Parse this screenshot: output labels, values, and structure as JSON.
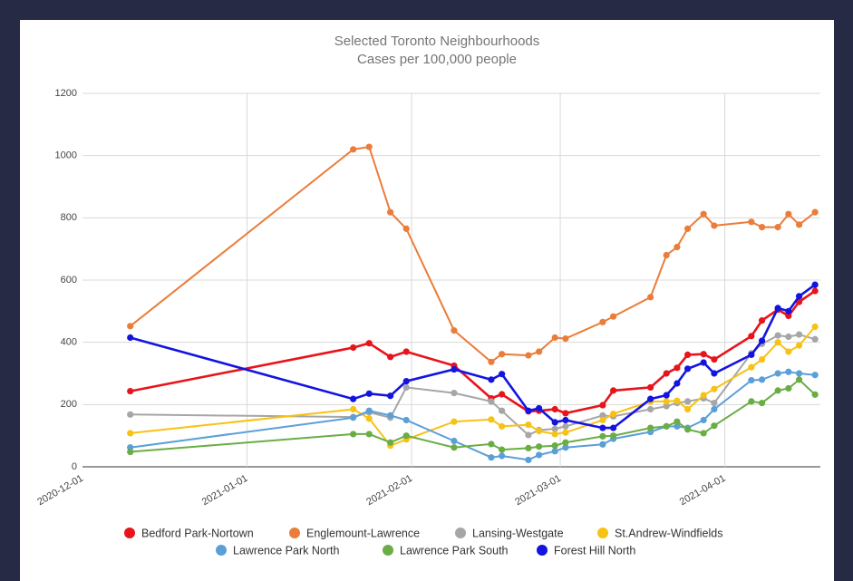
{
  "chart_data": {
    "type": "line",
    "title": "Selected Toronto Neighbourhoods",
    "subtitle": "Cases per 100,000 people",
    "x": [
      "2020-12-10",
      "2021-01-21",
      "2021-01-24",
      "2021-01-28",
      "2021-01-31",
      "2021-02-09",
      "2021-02-16",
      "2021-02-18",
      "2021-02-23",
      "2021-02-25",
      "2021-02-28",
      "2021-03-02",
      "2021-03-09",
      "2021-03-11",
      "2021-03-18",
      "2021-03-21",
      "2021-03-23",
      "2021-03-25",
      "2021-03-28",
      "2021-03-30",
      "2021-04-06",
      "2021-04-08",
      "2021-04-11",
      "2021-04-13",
      "2021-04-15",
      "2021-04-18"
    ],
    "xlim": [
      "2020-12-01",
      "2021-04-19"
    ],
    "xticks": [
      "2020-12-01",
      "2021-01-01",
      "2021-02-01",
      "2021-03-01",
      "2021-04-01"
    ],
    "ylim": [
      0,
      1200
    ],
    "yticks": [
      0,
      200,
      400,
      600,
      800,
      1000,
      1200
    ],
    "grid": true,
    "legend": "bottom",
    "series": [
      {
        "name": "Bedford Park-Nortown",
        "color": "#e8141b",
        "values": [
          243,
          383,
          397,
          353,
          370,
          325,
          220,
          233,
          178,
          180,
          185,
          172,
          198,
          245,
          255,
          300,
          318,
          360,
          362,
          345,
          420,
          470,
          505,
          485,
          530,
          565
        ]
      },
      {
        "name": "Englemount-Lawrence",
        "color": "#ea7d3a",
        "values": [
          452,
          1020,
          1028,
          818,
          765,
          438,
          337,
          362,
          358,
          370,
          415,
          412,
          465,
          483,
          545,
          680,
          706,
          765,
          812,
          775,
          787,
          770,
          770,
          812,
          778,
          818
        ]
      },
      {
        "name": "Lansing-Westgate",
        "color": "#a6a6a6",
        "values": [
          168,
          160,
          175,
          158,
          255,
          237,
          210,
          180,
          102,
          118,
          122,
          130,
          165,
          162,
          185,
          195,
          205,
          210,
          220,
          205,
          365,
          395,
          422,
          418,
          425,
          410
        ]
      },
      {
        "name": "St.Andrew-Windfields",
        "color": "#f7c214",
        "values": [
          108,
          185,
          155,
          68,
          88,
          145,
          152,
          130,
          135,
          115,
          105,
          110,
          150,
          170,
          210,
          210,
          212,
          185,
          230,
          250,
          320,
          345,
          400,
          370,
          390,
          450
        ]
      },
      {
        "name": "Lawrence Park North",
        "color": "#5b9fd8",
        "values": [
          62,
          158,
          180,
          165,
          150,
          83,
          30,
          35,
          22,
          38,
          50,
          62,
          72,
          90,
          112,
          130,
          130,
          125,
          150,
          185,
          278,
          280,
          300,
          305,
          300,
          295
        ]
      },
      {
        "name": "Lawrence Park South",
        "color": "#6aad45",
        "values": [
          48,
          105,
          105,
          78,
          100,
          62,
          73,
          55,
          60,
          65,
          68,
          78,
          98,
          100,
          125,
          130,
          145,
          120,
          108,
          132,
          210,
          205,
          245,
          252,
          280,
          232
        ]
      },
      {
        "name": "Forest Hill North",
        "color": "#1414e0",
        "values": [
          415,
          218,
          235,
          228,
          275,
          313,
          280,
          298,
          180,
          188,
          143,
          150,
          125,
          125,
          218,
          230,
          268,
          315,
          335,
          300,
          360,
          405,
          510,
          500,
          548,
          585
        ]
      }
    ]
  }
}
